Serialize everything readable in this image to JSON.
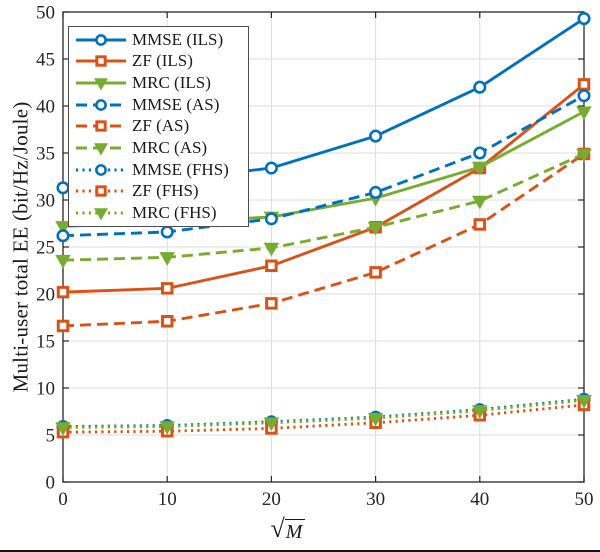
{
  "figure": {
    "background": "#ffffff",
    "bottom_edge_color": "#151515"
  },
  "chart_data": {
    "type": "line",
    "title": "",
    "xlabel": "√M",
    "ylabel": "Multi-user total EE (bit/Hz/Joule)",
    "xlim": [
      0,
      50
    ],
    "ylim": [
      0,
      50
    ],
    "xticks": [
      0,
      10,
      20,
      30,
      40,
      50
    ],
    "yticks": [
      0,
      5,
      10,
      15,
      20,
      25,
      30,
      35,
      40,
      45,
      50
    ],
    "grid": true,
    "legend_position": "top-left",
    "axis_color": "#262626",
    "grid_color": "#dcdcdc",
    "x": [
      0,
      10,
      20,
      30,
      40,
      50
    ],
    "series": [
      {
        "name": "MMSE (ILS)",
        "color": "#0072BD",
        "line_style": "solid",
        "marker": "circle",
        "values": [
          31.3,
          32.1,
          33.4,
          36.8,
          42.0,
          49.3
        ]
      },
      {
        "name": "ZF (ILS)",
        "color": "#D95319",
        "line_style": "solid",
        "marker": "square",
        "values": [
          20.2,
          20.6,
          23.0,
          27.1,
          33.4,
          42.3
        ]
      },
      {
        "name": "MRC (ILS)",
        "color": "#77AC30",
        "line_style": "solid",
        "marker": "triangle",
        "values": [
          27.2,
          27.6,
          28.2,
          30.2,
          33.5,
          39.4
        ]
      },
      {
        "name": "MMSE (AS)",
        "color": "#0072BD",
        "line_style": "dashed",
        "marker": "circle",
        "values": [
          26.2,
          26.6,
          28.0,
          30.8,
          35.0,
          41.1
        ]
      },
      {
        "name": "ZF (AS)",
        "color": "#D95319",
        "line_style": "dashed",
        "marker": "square",
        "values": [
          16.6,
          17.1,
          19.0,
          22.3,
          27.4,
          34.9
        ]
      },
      {
        "name": "MRC (AS)",
        "color": "#77AC30",
        "line_style": "dashed",
        "marker": "triangle",
        "values": [
          23.6,
          23.9,
          24.9,
          27.1,
          29.9,
          34.9
        ]
      },
      {
        "name": "MMSE (FHS)",
        "color": "#0072BD",
        "line_style": "dotted",
        "marker": "circle",
        "values": [
          5.9,
          6.0,
          6.4,
          6.9,
          7.7,
          8.8
        ]
      },
      {
        "name": "ZF (FHS)",
        "color": "#D95319",
        "line_style": "dotted",
        "marker": "square",
        "values": [
          5.3,
          5.4,
          5.7,
          6.3,
          7.1,
          8.2
        ]
      },
      {
        "name": "MRC (FHS)",
        "color": "#77AC30",
        "line_style": "dotted",
        "marker": "triangle",
        "values": [
          5.8,
          5.9,
          6.3,
          6.8,
          7.6,
          8.7
        ]
      }
    ]
  }
}
